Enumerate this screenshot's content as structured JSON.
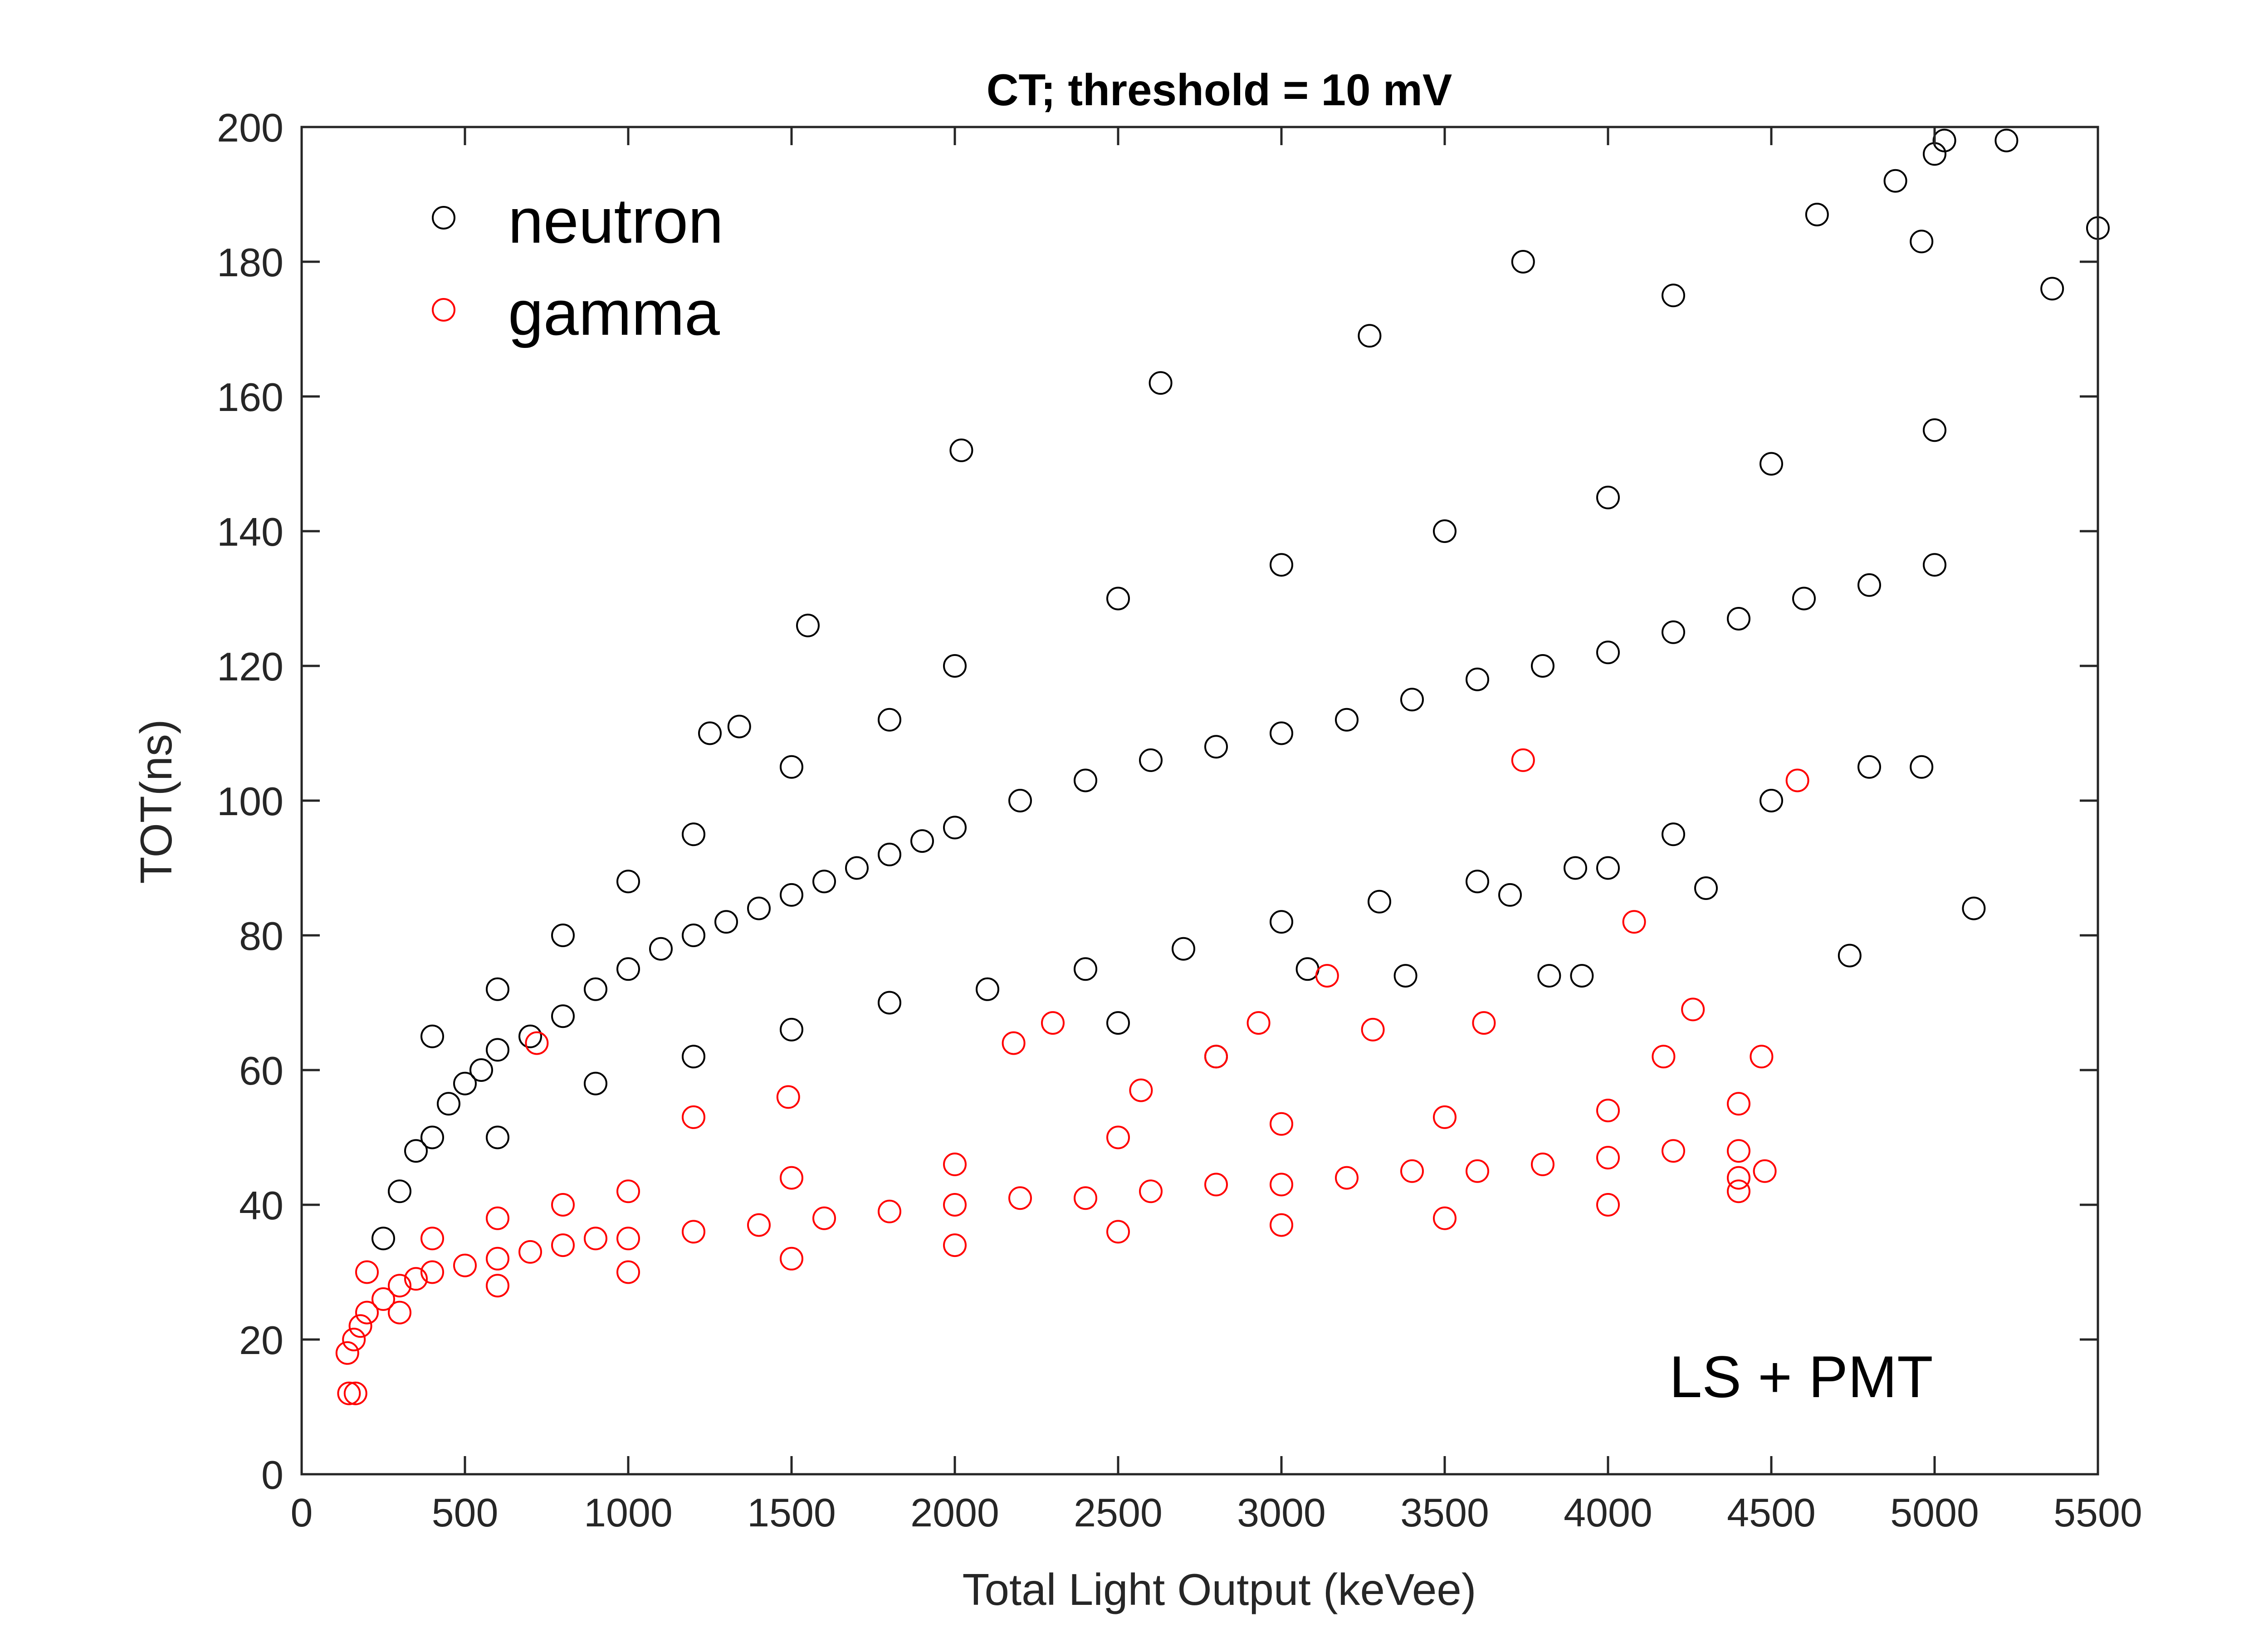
{
  "chart_data": {
    "type": "scatter",
    "title": "CT; threshold = 10 mV",
    "xlabel": "Total Light Output (keVee)",
    "ylabel": "TOT(ns)",
    "xlim": [
      0,
      5500
    ],
    "ylim": [
      0,
      200
    ],
    "xticks": [
      0,
      500,
      1000,
      1500,
      2000,
      2500,
      3000,
      3500,
      4000,
      4500,
      5000,
      5500
    ],
    "yticks": [
      0,
      20,
      40,
      60,
      80,
      100,
      120,
      140,
      160,
      180,
      200
    ],
    "legend_position": "top-left",
    "annotation": "LS + PMT",
    "grid": false,
    "series": [
      {
        "name": "neutron",
        "color": "#000000",
        "marker": "open-circle",
        "points": [
          [
            250,
            35
          ],
          [
            300,
            42
          ],
          [
            350,
            48
          ],
          [
            400,
            50
          ],
          [
            450,
            55
          ],
          [
            500,
            58
          ],
          [
            550,
            60
          ],
          [
            600,
            63
          ],
          [
            700,
            65
          ],
          [
            800,
            68
          ],
          [
            900,
            72
          ],
          [
            1000,
            75
          ],
          [
            1100,
            78
          ],
          [
            1200,
            80
          ],
          [
            1300,
            82
          ],
          [
            1400,
            84
          ],
          [
            1500,
            86
          ],
          [
            1600,
            88
          ],
          [
            1700,
            90
          ],
          [
            1800,
            92
          ],
          [
            1900,
            94
          ],
          [
            2000,
            96
          ],
          [
            2200,
            100
          ],
          [
            2400,
            103
          ],
          [
            2600,
            106
          ],
          [
            2800,
            108
          ],
          [
            3000,
            110
          ],
          [
            3200,
            112
          ],
          [
            3400,
            115
          ],
          [
            3600,
            118
          ],
          [
            3800,
            120
          ],
          [
            4000,
            122
          ],
          [
            4200,
            125
          ],
          [
            4400,
            127
          ],
          [
            4600,
            130
          ],
          [
            4800,
            132
          ],
          [
            5000,
            135
          ],
          [
            400,
            65
          ],
          [
            600,
            72
          ],
          [
            800,
            80
          ],
          [
            1000,
            88
          ],
          [
            1200,
            95
          ],
          [
            1500,
            105
          ],
          [
            1800,
            112
          ],
          [
            2000,
            120
          ],
          [
            2500,
            130
          ],
          [
            3000,
            135
          ],
          [
            3500,
            140
          ],
          [
            4000,
            145
          ],
          [
            4500,
            150
          ],
          [
            5000,
            155
          ],
          [
            600,
            50
          ],
          [
            900,
            58
          ],
          [
            1200,
            62
          ],
          [
            1500,
            66
          ],
          [
            1800,
            70
          ],
          [
            2100,
            72
          ],
          [
            2400,
            75
          ],
          [
            2700,
            78
          ],
          [
            3000,
            82
          ],
          [
            3300,
            85
          ],
          [
            3600,
            88
          ],
          [
            3900,
            90
          ],
          [
            4200,
            95
          ],
          [
            4500,
            100
          ],
          [
            4800,
            105
          ],
          [
            2020,
            152
          ],
          [
            2630,
            162
          ],
          [
            3740,
            180
          ],
          [
            4640,
            187
          ],
          [
            4880,
            192
          ],
          [
            5030,
            198
          ],
          [
            5220,
            198
          ],
          [
            5000,
            196
          ],
          [
            5500,
            185
          ],
          [
            5360,
            176
          ],
          [
            4960,
            183
          ],
          [
            4960,
            105
          ],
          [
            5120,
            84
          ],
          [
            4740,
            77
          ],
          [
            4200,
            175
          ],
          [
            3270,
            169
          ],
          [
            3080,
            75
          ],
          [
            3920,
            74
          ],
          [
            1550,
            126
          ],
          [
            1250,
            110
          ],
          [
            1340,
            111
          ],
          [
            3820,
            74
          ],
          [
            3380,
            74
          ],
          [
            2800,
            62
          ],
          [
            2500,
            67
          ],
          [
            4300,
            87
          ],
          [
            4000,
            90
          ],
          [
            3700,
            86
          ]
        ]
      },
      {
        "name": "gamma",
        "color": "#ff0000",
        "marker": "open-circle",
        "points": [
          [
            140,
            18
          ],
          [
            160,
            20
          ],
          [
            180,
            22
          ],
          [
            200,
            24
          ],
          [
            250,
            26
          ],
          [
            300,
            28
          ],
          [
            350,
            29
          ],
          [
            400,
            30
          ],
          [
            500,
            31
          ],
          [
            600,
            32
          ],
          [
            700,
            33
          ],
          [
            800,
            34
          ],
          [
            900,
            35
          ],
          [
            1000,
            35
          ],
          [
            1200,
            36
          ],
          [
            1400,
            37
          ],
          [
            1600,
            38
          ],
          [
            1800,
            39
          ],
          [
            2000,
            40
          ],
          [
            2200,
            41
          ],
          [
            2400,
            41
          ],
          [
            2600,
            42
          ],
          [
            2800,
            43
          ],
          [
            3000,
            43
          ],
          [
            3200,
            44
          ],
          [
            3400,
            45
          ],
          [
            3600,
            45
          ],
          [
            3800,
            46
          ],
          [
            4000,
            47
          ],
          [
            4200,
            48
          ],
          [
            4400,
            48
          ],
          [
            200,
            30
          ],
          [
            400,
            35
          ],
          [
            600,
            38
          ],
          [
            800,
            40
          ],
          [
            1000,
            42
          ],
          [
            1500,
            44
          ],
          [
            2000,
            46
          ],
          [
            2500,
            50
          ],
          [
            3000,
            52
          ],
          [
            3500,
            53
          ],
          [
            4000,
            54
          ],
          [
            4400,
            55
          ],
          [
            300,
            24
          ],
          [
            600,
            28
          ],
          [
            1000,
            30
          ],
          [
            1500,
            32
          ],
          [
            2000,
            34
          ],
          [
            2500,
            36
          ],
          [
            3000,
            37
          ],
          [
            3500,
            38
          ],
          [
            4000,
            40
          ],
          [
            4400,
            42
          ],
          [
            145,
            12
          ],
          [
            165,
            12
          ],
          [
            720,
            64
          ],
          [
            1200,
            53
          ],
          [
            1490,
            56
          ],
          [
            2180,
            64
          ],
          [
            2300,
            67
          ],
          [
            2930,
            67
          ],
          [
            3140,
            74
          ],
          [
            3280,
            66
          ],
          [
            3620,
            67
          ],
          [
            3740,
            106
          ],
          [
            4580,
            103
          ],
          [
            4080,
            82
          ],
          [
            4260,
            69
          ],
          [
            4470,
            62
          ],
          [
            4170,
            62
          ],
          [
            2800,
            62
          ],
          [
            2570,
            57
          ],
          [
            4480,
            45
          ],
          [
            4400,
            44
          ]
        ]
      }
    ]
  }
}
